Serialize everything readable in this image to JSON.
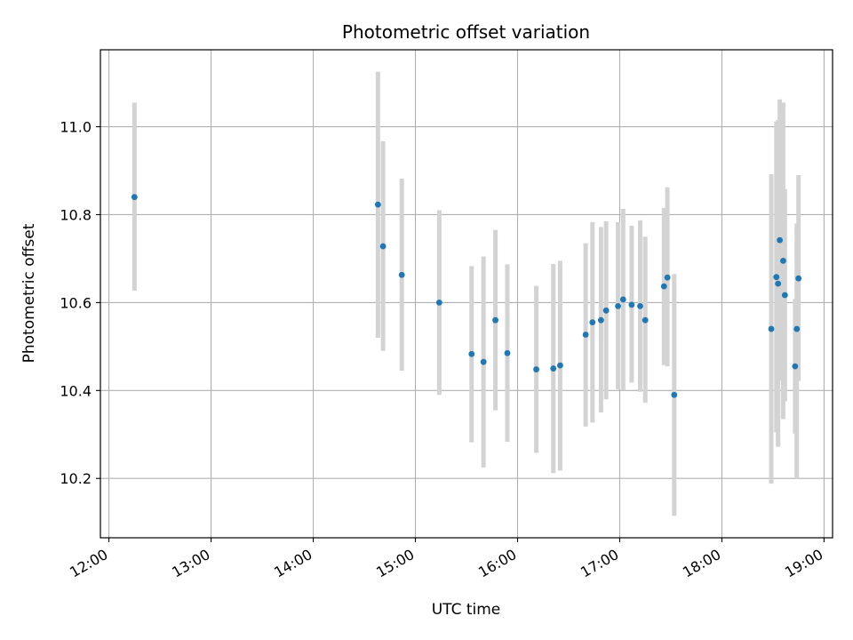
{
  "chart_data": {
    "type": "scatter",
    "title": "Photometric offset variation",
    "xlabel": "UTC time",
    "ylabel": "Photometric offset",
    "x_ticks": [
      "12:00",
      "13:00",
      "14:00",
      "15:00",
      "16:00",
      "17:00",
      "18:00",
      "19:00"
    ],
    "y_ticks": [
      "10.2",
      "10.4",
      "10.6",
      "10.8",
      "11.0"
    ],
    "xlim": [
      "11:55",
      "19:05"
    ],
    "ylim": [
      10.065,
      11.175
    ],
    "grid": true,
    "marker_color": "#1f77b4",
    "errorbar_color": "#d3d3d3",
    "points": [
      {
        "x": "12:15",
        "y": 10.84,
        "err_low": 10.627,
        "err_high": 11.055
      },
      {
        "x": "14:38",
        "y": 10.823,
        "err_low": 10.52,
        "err_high": 11.125
      },
      {
        "x": "14:41",
        "y": 10.728,
        "err_low": 10.49,
        "err_high": 10.967
      },
      {
        "x": "14:52",
        "y": 10.663,
        "err_low": 10.445,
        "err_high": 10.882
      },
      {
        "x": "15:14",
        "y": 10.6,
        "err_low": 10.39,
        "err_high": 10.81
      },
      {
        "x": "15:33",
        "y": 10.483,
        "err_low": 10.282,
        "err_high": 10.683
      },
      {
        "x": "15:40",
        "y": 10.465,
        "err_low": 10.225,
        "err_high": 10.705
      },
      {
        "x": "15:47",
        "y": 10.56,
        "err_low": 10.355,
        "err_high": 10.765
      },
      {
        "x": "15:54",
        "y": 10.485,
        "err_low": 10.283,
        "err_high": 10.687
      },
      {
        "x": "16:11",
        "y": 10.448,
        "err_low": 10.258,
        "err_high": 10.638
      },
      {
        "x": "16:21",
        "y": 10.45,
        "err_low": 10.212,
        "err_high": 10.688
      },
      {
        "x": "16:25",
        "y": 10.457,
        "err_low": 10.218,
        "err_high": 10.695
      },
      {
        "x": "16:40",
        "y": 10.527,
        "err_low": 10.318,
        "err_high": 10.735
      },
      {
        "x": "16:44",
        "y": 10.555,
        "err_low": 10.327,
        "err_high": 10.783
      },
      {
        "x": "16:49",
        "y": 10.56,
        "err_low": 10.35,
        "err_high": 10.772
      },
      {
        "x": "16:52",
        "y": 10.582,
        "err_low": 10.38,
        "err_high": 10.785
      },
      {
        "x": "16:59",
        "y": 10.592,
        "err_low": 10.403,
        "err_high": 10.783
      },
      {
        "x": "17:02",
        "y": 10.607,
        "err_low": 10.4,
        "err_high": 10.813
      },
      {
        "x": "17:07",
        "y": 10.595,
        "err_low": 10.418,
        "err_high": 10.775
      },
      {
        "x": "17:12",
        "y": 10.592,
        "err_low": 10.397,
        "err_high": 10.787
      },
      {
        "x": "17:15",
        "y": 10.56,
        "err_low": 10.372,
        "err_high": 10.75
      },
      {
        "x": "17:26",
        "y": 10.637,
        "err_low": 10.458,
        "err_high": 10.815
      },
      {
        "x": "17:28",
        "y": 10.657,
        "err_low": 10.455,
        "err_high": 10.862
      },
      {
        "x": "17:32",
        "y": 10.39,
        "err_low": 10.115,
        "err_high": 10.665
      },
      {
        "x": "18:29",
        "y": 10.54,
        "err_low": 10.188,
        "err_high": 10.892
      },
      {
        "x": "18:32",
        "y": 10.658,
        "err_low": 10.305,
        "err_high": 11.012
      },
      {
        "x": "18:33",
        "y": 10.643,
        "err_low": 10.272,
        "err_high": 11.015
      },
      {
        "x": "18:34",
        "y": 10.742,
        "err_low": 10.422,
        "err_high": 11.062
      },
      {
        "x": "18:36",
        "y": 10.695,
        "err_low": 10.335,
        "err_high": 11.055
      },
      {
        "x": "18:37",
        "y": 10.617,
        "err_low": 10.375,
        "err_high": 10.858
      },
      {
        "x": "18:43",
        "y": 10.455,
        "err_low": 10.302,
        "err_high": 10.608
      },
      {
        "x": "18:44",
        "y": 10.54,
        "err_low": 10.2,
        "err_high": 10.78
      },
      {
        "x": "18:45",
        "y": 10.655,
        "err_low": 10.422,
        "err_high": 10.89
      }
    ]
  }
}
